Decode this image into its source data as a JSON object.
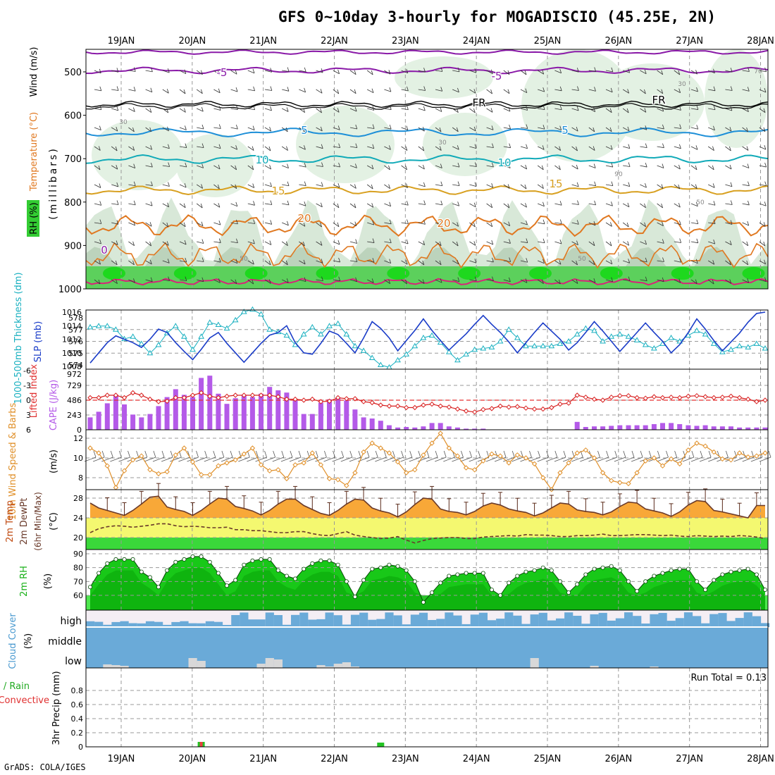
{
  "title": "GFS 0~10day 3-hourly for MOGADISCIO (45.25E, 2N)",
  "footer": "GrADS: COLA/IGES",
  "chart_data": [
    {
      "panel": "upper-air",
      "type": "contour",
      "dates": [
        "19JAN",
        "20JAN",
        "21JAN",
        "22JAN",
        "23JAN",
        "24JAN",
        "25JAN",
        "26JAN",
        "27JAN",
        "28JAN"
      ],
      "ylabel": "(millibars)",
      "side_labels": {
        "wind": "Wind (m/s)",
        "temp": "Temperature (°C)",
        "rh": "RH (%)"
      },
      "yticks": [
        500,
        600,
        700,
        800,
        900,
        1000
      ],
      "isotherm_labels": [
        "-5",
        "FR",
        "5",
        "10",
        "15",
        "20",
        "0"
      ],
      "rh_labels": [
        "30",
        "50",
        "70",
        "90"
      ]
    },
    {
      "panel": "thickness-slp",
      "type": "line",
      "ylabel_left": "1000-500mb Thickness (dm)",
      "ylabel_right": "SLP (mb)",
      "left_ticks": [
        "578",
        "577",
        "576",
        "575",
        "574"
      ],
      "right_ticks": [
        "1016",
        "1014",
        "1012",
        "1010",
        "1008"
      ],
      "series": [
        {
          "name": "thickness",
          "color": "#19b0c0",
          "values": [
            577.2,
            577.3,
            577.3,
            577.0,
            576.2,
            576.4,
            575.8,
            575.0,
            575.7,
            576.7,
            577.3,
            576.4,
            575.3,
            576.4,
            577.6,
            577.4,
            577.1,
            577.8,
            578.5,
            578.7,
            578.3,
            577.0,
            576.8,
            576.5,
            575.7,
            576.6,
            577.2,
            576.6,
            577.3,
            577.5,
            576.6,
            575.6,
            575.2,
            574.6,
            574.0,
            573.8,
            574.4,
            574.9,
            575.6,
            576.3,
            576.5,
            575.9,
            575.1,
            574.4,
            574.9,
            575.3,
            575.4,
            575.5,
            576.0,
            577.0,
            576.3,
            575.6,
            575.6,
            575.6,
            575.6,
            575.8,
            576.0,
            576.6,
            577.1,
            576.9,
            576.0,
            576.4,
            576.6,
            576.4,
            576.1,
            575.7,
            575.4,
            575.8,
            576.3,
            576.0,
            576.5,
            576.9,
            576.6,
            575.8,
            575.1,
            575.3,
            575.6,
            575.5,
            575.8,
            575.4
          ]
        },
        {
          "name": "SLP",
          "color": "#1a3cc8",
          "values": [
            1008.5,
            1010.0,
            1011.5,
            1012.5,
            1012.0,
            1011.5,
            1010.8,
            1012.0,
            1013.5,
            1013.0,
            1011.5,
            1010.2,
            1009.0,
            1010.5,
            1012.2,
            1013.0,
            1011.4,
            1010.0,
            1008.6,
            1010.0,
            1011.4,
            1012.6,
            1013.0,
            1014.0,
            1011.5,
            1010.0,
            1009.8,
            1011.4,
            1013.2,
            1012.7,
            1011.4,
            1010.0,
            1012.2,
            1014.6,
            1013.6,
            1012.2,
            1010.3,
            1011.8,
            1013.3,
            1015.0,
            1013.3,
            1011.8,
            1010.4,
            1011.6,
            1012.8,
            1014.2,
            1015.5,
            1014.2,
            1013.0,
            1011.6,
            1010.0,
            1011.5,
            1013.0,
            1014.4,
            1013.2,
            1012.0,
            1010.4,
            1011.5,
            1013.0,
            1014.6,
            1013.2,
            1011.7,
            1010.2,
            1011.6,
            1013.0,
            1014.4,
            1013.0,
            1011.7,
            1010.0,
            1011.2,
            1013.0,
            1015.0,
            1013.5,
            1011.8,
            1010.3,
            1011.6,
            1012.9,
            1014.5,
            1015.8,
            1016.0
          ]
        }
      ]
    },
    {
      "panel": "cape-lifted-index",
      "type": "bar",
      "ylabel_left": "Lifted Index",
      "ylabel_right": "CAPE (J/kg)",
      "left_ticks": [
        "-6",
        "-3",
        "0",
        "3",
        "6"
      ],
      "right_ticks": [
        "972",
        "729",
        "486",
        "243",
        "0"
      ],
      "cape": [
        220,
        320,
        470,
        620,
        450,
        270,
        220,
        280,
        420,
        580,
        720,
        620,
        580,
        920,
        960,
        640,
        460,
        560,
        620,
        580,
        640,
        760,
        700,
        660,
        520,
        280,
        280,
        480,
        540,
        560,
        520,
        360,
        220,
        200,
        160,
        80,
        40,
        50,
        40,
        60,
        120,
        120,
        60,
        40,
        20,
        20,
        20,
        0,
        0,
        0,
        0,
        0,
        0,
        0,
        0,
        0,
        0,
        140,
        50,
        60,
        60,
        70,
        80,
        80,
        80,
        80,
        100,
        120,
        120,
        100,
        80,
        70,
        80,
        60,
        60,
        60,
        40,
        40,
        40,
        40
      ],
      "lifted_index": [
        -0.5,
        -0.5,
        -1.0,
        -1.0,
        -0.5,
        -1.5,
        -1.0,
        -0.2,
        0.3,
        0.2,
        -0.5,
        -0.5,
        -1.0,
        -1.5,
        -0.8,
        -0.5,
        -0.8,
        -1.0,
        -1.0,
        -1.0,
        -1.0,
        -1.0,
        -0.7,
        -0.2,
        -0.2,
        0.0,
        -0.2,
        0.3,
        0.2,
        -0.5,
        -0.3,
        -0.3,
        0.3,
        0.5,
        1.0,
        1.2,
        1.2,
        1.5,
        1.5,
        1.0,
        0.8,
        1.2,
        1.4,
        1.8,
        2.2,
        2.4,
        1.9,
        1.7,
        1.2,
        1.4,
        1.3,
        1.6,
        1.8,
        1.8,
        1.5,
        0.8,
        0.6,
        -1.0,
        -0.6,
        -0.2,
        0.0,
        -0.6,
        -0.9,
        -0.9,
        -0.5,
        -0.4,
        -0.7,
        -0.5,
        -0.6,
        -0.5,
        -0.8,
        -0.9,
        -0.7,
        -0.5,
        -0.6,
        -0.8,
        -0.5,
        -0.2,
        0.3,
        0.0
      ]
    },
    {
      "panel": "wind-10m",
      "type": "line",
      "ylabel_left": "10m Wind Speed & Barbs",
      "ylabel_right": "(m/s)",
      "ticks": [
        "12",
        "10",
        "8"
      ],
      "values": [
        11.0,
        10.5,
        9.2,
        7.0,
        8.7,
        9.8,
        10.2,
        8.8,
        8.4,
        8.6,
        10.3,
        11.0,
        9.6,
        8.3,
        8.3,
        9.2,
        9.5,
        9.8,
        10.4,
        11.0,
        9.3,
        8.7,
        8.8,
        7.9,
        9.3,
        9.5,
        10.5,
        9.3,
        7.9,
        7.8,
        7.2,
        8.5,
        10.6,
        11.5,
        11.0,
        10.5,
        9.6,
        8.5,
        8.8,
        10.3,
        11.5,
        12.5,
        11.0,
        10.2,
        9.0,
        8.8,
        9.7,
        10.4,
        10.2,
        9.5,
        10.3,
        10.0,
        9.4,
        8.0,
        6.8,
        8.5,
        9.5,
        10.5,
        10.8,
        10.0,
        8.5,
        7.7,
        7.5,
        7.4,
        8.5,
        9.7,
        10.0,
        9.2,
        9.9,
        9.4,
        10.8,
        11.5,
        11.2,
        10.6,
        9.9,
        9.8,
        10.5,
        10.1,
        10.2,
        10.5
      ]
    },
    {
      "panel": "temp-2m",
      "type": "area",
      "ylabel_left": "2m Temp 2m DewPt (6hr Min/Max)",
      "ylabel_right": "(°C)",
      "ticks": [
        "28",
        "24",
        "20"
      ],
      "temp": [
        27.0,
        26.0,
        25.5,
        25.0,
        24.5,
        25.5,
        26.8,
        28.2,
        28.4,
        26.2,
        25.7,
        25.3,
        24.5,
        25.5,
        26.8,
        28.0,
        27.8,
        26.3,
        25.9,
        25.4,
        24.6,
        25.5,
        26.8,
        27.8,
        27.8,
        26.5,
        25.7,
        24.9,
        24.5,
        25.5,
        26.8,
        27.8,
        27.6,
        26.0,
        25.4,
        25.0,
        24.2,
        25.2,
        26.7,
        28.0,
        27.8,
        25.8,
        25.3,
        25.1,
        24.6,
        25.3,
        26.4,
        27.0,
        26.6,
        25.8,
        25.4,
        25.1,
        24.4,
        25.0,
        26.0,
        27.0,
        26.8,
        25.6,
        25.3,
        25.1,
        24.6,
        25.2,
        26.3,
        27.2,
        27.0,
        25.8,
        25.4,
        25.0,
        24.3,
        25.2,
        26.6,
        27.5,
        27.3,
        25.5,
        25.2,
        24.8,
        24.4,
        24.0,
        26.5,
        26.5
      ],
      "dewpt": [
        21.0,
        21.8,
        22.2,
        22.4,
        22.3,
        22.1,
        22.3,
        22.5,
        22.8,
        22.8,
        22.4,
        22.2,
        22.3,
        22.2,
        22.0,
        22.0,
        22.1,
        21.6,
        21.6,
        21.4,
        21.4,
        21.2,
        21.0,
        21.0,
        21.2,
        21.2,
        20.8,
        20.5,
        20.4,
        20.8,
        21.2,
        20.5,
        20.2,
        20.0,
        19.8,
        19.9,
        20.2,
        19.5,
        18.9,
        19.4,
        19.8,
        19.9,
        20.0,
        20.0,
        19.8,
        19.8,
        20.1,
        20.2,
        20.3,
        20.4,
        20.3,
        20.6,
        20.5,
        20.5,
        20.4,
        20.2,
        20.2,
        20.4,
        20.4,
        20.5,
        20.7,
        20.4,
        20.4,
        20.5,
        20.6,
        20.6,
        20.5,
        20.4,
        20.5,
        20.3,
        20.2,
        20.4,
        20.3,
        20.2,
        20.3,
        20.2,
        20.4,
        20.3,
        20.1,
        19.8
      ]
    },
    {
      "panel": "rh-2m",
      "type": "area",
      "ylabel_left": "2m RH",
      "ylabel_right": "(%)",
      "ticks": [
        "90",
        "80",
        "70",
        "60"
      ],
      "values": [
        66,
        76,
        83,
        86,
        86,
        86,
        77,
        73,
        66,
        78,
        84,
        86,
        88,
        88,
        84,
        76,
        67,
        71,
        82,
        85,
        86,
        86,
        78,
        74,
        72,
        79,
        83,
        85,
        85,
        82,
        70,
        59,
        71,
        79,
        80,
        82,
        81,
        78,
        70,
        55,
        62,
        69,
        74,
        75,
        76,
        76,
        76,
        64,
        60,
        69,
        74,
        77,
        78,
        80,
        78,
        70,
        62,
        68,
        75,
        79,
        80,
        81,
        78,
        70,
        63,
        70,
        74,
        76,
        78,
        79,
        79,
        70,
        64,
        71,
        75,
        77,
        78,
        79,
        75,
        64
      ]
    },
    {
      "panel": "cloud-cover",
      "type": "area",
      "ylabel_left": "Cloud Cover",
      "ylabel_right": "(%)",
      "levels": [
        "high",
        "middle",
        "low"
      ]
    },
    {
      "panel": "precip",
      "type": "bar",
      "ylabel_left": "Total / Rain",
      "ylabel_left2": "Convective",
      "ylabel_right": "3hr Precip (mm)",
      "ticks": [
        "0.8",
        "0.6",
        "0.4",
        "0.2",
        "0"
      ],
      "annotation": "Run Total = 0.13",
      "bars": [
        {
          "date_index": 13,
          "total": 0.07,
          "convective": 0.07
        },
        {
          "date_index": 34,
          "total": 0.06,
          "convective": 0.0
        }
      ]
    }
  ]
}
